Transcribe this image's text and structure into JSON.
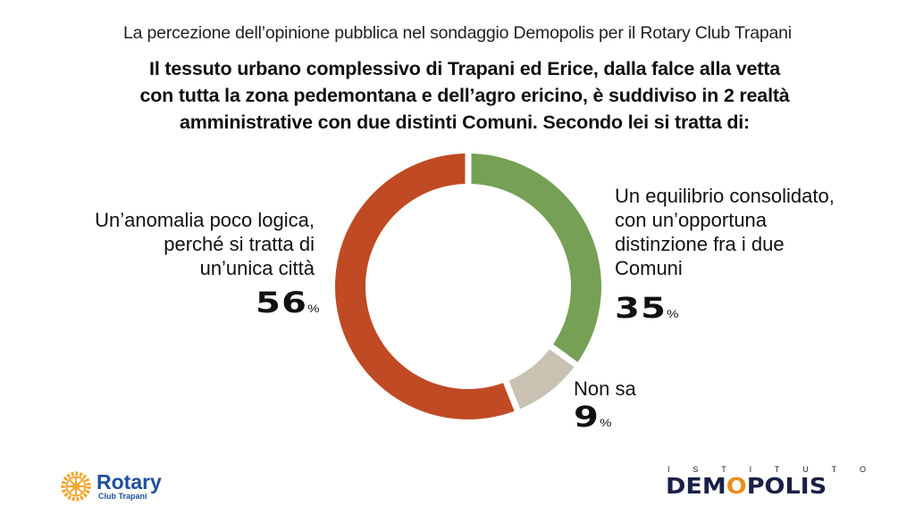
{
  "header": {
    "subtitle": "La percezione dell’opinione pubblica nel sondaggio Demopolis per il Rotary Club Trapani",
    "question_lines": [
      "Il tessuto urbano complessivo di Trapani ed Erice, dalla falce alla vetta",
      "con tutta la zona pedemontana e dell’agro ericino, è suddiviso in 2 realtà",
      "amministrative con due distinti Comuni. Secondo lei si tratta di:"
    ]
  },
  "chart_data": {
    "type": "pie",
    "variant": "donut",
    "title": "Il tessuto urbano complessivo di Trapani ed Erice, dalla falce alla vetta con tutta la zona pedemontana e dell’agro ericino, è suddiviso in 2 realtà amministrative con due distinti Comuni. Secondo lei si tratta di:",
    "unit": "%",
    "start": "top",
    "direction": "clockwise",
    "slices": [
      {
        "key": "equilibrio",
        "label_lines": [
          "Un equilibrio consolidato,",
          "con un’opportuna",
          "distinzione fra i due",
          "Comuni"
        ],
        "value": 35,
        "value_text": "35",
        "color": "#76a056"
      },
      {
        "key": "nonsa",
        "label_lines": [
          "Non sa"
        ],
        "value": 9,
        "value_text": "9",
        "color": "#c9c2b2"
      },
      {
        "key": "anomalia",
        "label_lines": [
          "Un’anomalia poco logica,",
          "perché si tratta di",
          "un’unica città"
        ],
        "value": 56,
        "value_text": "56",
        "color": "#bf4a24"
      }
    ],
    "percent_symbol": "%"
  },
  "logos": {
    "rotary_name": "Rotary",
    "rotary_club": "Club Trapani",
    "rotary_color": "#1f4f9c",
    "rotary_wheel_color": "#f2a72b",
    "demopolis_top_letters": [
      "I",
      "S",
      "T",
      "I",
      "T",
      "U",
      "T",
      "O"
    ],
    "demopolis_brand_pre": "DEM",
    "demopolis_brand_o": "O",
    "demopolis_brand_post": "POLIS",
    "demopolis_color": "#1b2046",
    "demopolis_accent": "#e8901e"
  }
}
